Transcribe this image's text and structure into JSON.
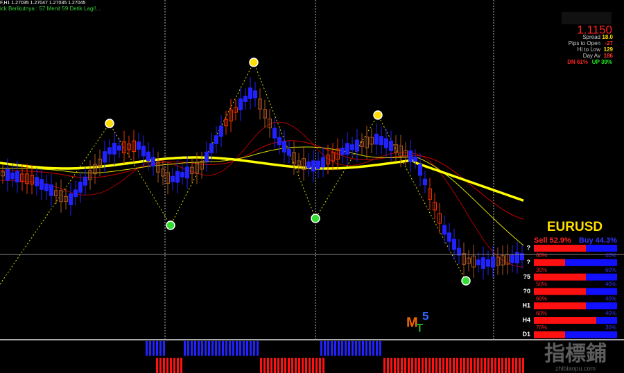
{
  "header": {
    "ohlc": "F,H1 1.27035 1.27047 1.27035 1.27045",
    "countdown": "ick Berikutnya : 57 Menit 59 Detik Lagi!..."
  },
  "info_panel": {
    "price": "1.1150",
    "rows": [
      {
        "label": "Spread",
        "value": "18.0"
      },
      {
        "label": "Pips to Open",
        "value": "-27"
      },
      {
        "label": "Hi to Low",
        "value": "129"
      },
      {
        "label": "Day Av",
        "value": "186"
      }
    ],
    "down": "DN 61%",
    "up": "UP 39%"
  },
  "strength_panel": {
    "symbol": "EURUSD",
    "sell": "Sell 52.9%",
    "buy": "Buy 44.3%",
    "rows": [
      {
        "label": "?",
        "left": "60%",
        "right": "40%"
      },
      {
        "label": "?",
        "left": "30%",
        "right": "60%"
      },
      {
        "label": "?5",
        "left": "50%",
        "right": "40%"
      },
      {
        "label": "?0",
        "left": "60%",
        "right": "40%"
      },
      {
        "label": "H1",
        "left": "60%",
        "right": "40%"
      },
      {
        "label": "H4",
        "left": "70%",
        "right": "30%"
      },
      {
        "label": "D1"
      }
    ]
  },
  "logo": {
    "m": "M",
    "t": "T",
    "five": "5"
  },
  "watermark": {
    "chinese": "指標鋪",
    "url": "zhibiaopu.com"
  }
}
